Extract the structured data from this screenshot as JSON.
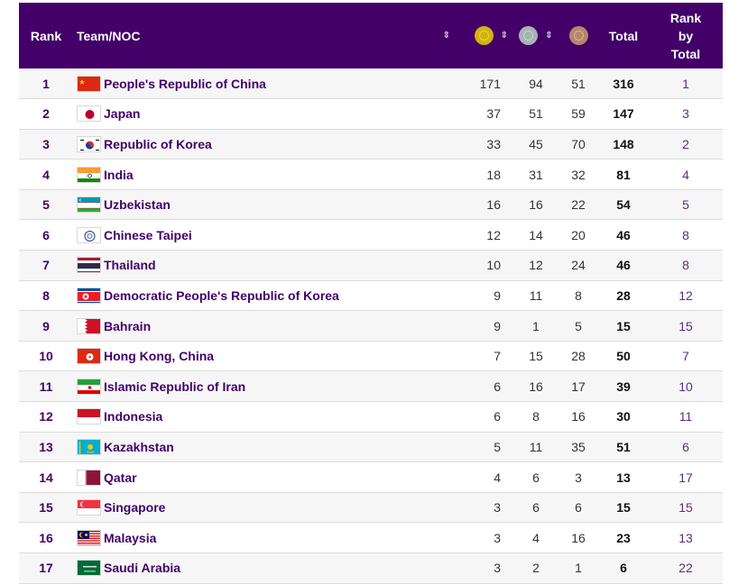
{
  "header": {
    "rank": "Rank",
    "team": "Team/NOC",
    "total": "Total",
    "rank_by_total_line1": "Rank",
    "rank_by_total_line2": "by",
    "rank_by_total_line3": "Total",
    "sort_glyph": "⇕",
    "medal_icons": [
      "gold-medal-icon",
      "silver-medal-icon",
      "bronze-medal-icon"
    ]
  },
  "colors": {
    "header_bg": "#420068",
    "team_text": "#420068",
    "gold": "#d4b20c",
    "silver": "#a9b3b6",
    "bronze": "#b8866b"
  },
  "rows": [
    {
      "rank": "1",
      "team": "People's Republic of China",
      "flag": "china-flag-icon",
      "gold": "171",
      "silver": "94",
      "bronze": "51",
      "total": "316",
      "rank_by_total": "1"
    },
    {
      "rank": "2",
      "team": "Japan",
      "flag": "japan-flag-icon",
      "gold": "37",
      "silver": "51",
      "bronze": "59",
      "total": "147",
      "rank_by_total": "3"
    },
    {
      "rank": "3",
      "team": "Republic of Korea",
      "flag": "korea-flag-icon",
      "gold": "33",
      "silver": "45",
      "bronze": "70",
      "total": "148",
      "rank_by_total": "2"
    },
    {
      "rank": "4",
      "team": "India",
      "flag": "india-flag-icon",
      "gold": "18",
      "silver": "31",
      "bronze": "32",
      "total": "81",
      "rank_by_total": "4"
    },
    {
      "rank": "5",
      "team": "Uzbekistan",
      "flag": "uzbekistan-flag-icon",
      "gold": "16",
      "silver": "16",
      "bronze": "22",
      "total": "54",
      "rank_by_total": "5"
    },
    {
      "rank": "6",
      "team": "Chinese Taipei",
      "flag": "chinese-taipei-flag-icon",
      "gold": "12",
      "silver": "14",
      "bronze": "20",
      "total": "46",
      "rank_by_total": "8"
    },
    {
      "rank": "7",
      "team": "Thailand",
      "flag": "thailand-flag-icon",
      "gold": "10",
      "silver": "12",
      "bronze": "24",
      "total": "46",
      "rank_by_total": "8"
    },
    {
      "rank": "8",
      "team": "Democratic People's Republic of Korea",
      "flag": "dprk-flag-icon",
      "gold": "9",
      "silver": "11",
      "bronze": "8",
      "total": "28",
      "rank_by_total": "12"
    },
    {
      "rank": "9",
      "team": "Bahrain",
      "flag": "bahrain-flag-icon",
      "gold": "9",
      "silver": "1",
      "bronze": "5",
      "total": "15",
      "rank_by_total": "15"
    },
    {
      "rank": "10",
      "team": "Hong Kong, China",
      "flag": "hong-kong-flag-icon",
      "gold": "7",
      "silver": "15",
      "bronze": "28",
      "total": "50",
      "rank_by_total": "7"
    },
    {
      "rank": "11",
      "team": "Islamic Republic of Iran",
      "flag": "iran-flag-icon",
      "gold": "6",
      "silver": "16",
      "bronze": "17",
      "total": "39",
      "rank_by_total": "10"
    },
    {
      "rank": "12",
      "team": "Indonesia",
      "flag": "indonesia-flag-icon",
      "gold": "6",
      "silver": "8",
      "bronze": "16",
      "total": "30",
      "rank_by_total": "11"
    },
    {
      "rank": "13",
      "team": "Kazakhstan",
      "flag": "kazakhstan-flag-icon",
      "gold": "5",
      "silver": "11",
      "bronze": "35",
      "total": "51",
      "rank_by_total": "6"
    },
    {
      "rank": "14",
      "team": "Qatar",
      "flag": "qatar-flag-icon",
      "gold": "4",
      "silver": "6",
      "bronze": "3",
      "total": "13",
      "rank_by_total": "17"
    },
    {
      "rank": "15",
      "team": "Singapore",
      "flag": "singapore-flag-icon",
      "gold": "3",
      "silver": "6",
      "bronze": "6",
      "total": "15",
      "rank_by_total": "15"
    },
    {
      "rank": "16",
      "team": "Malaysia",
      "flag": "malaysia-flag-icon",
      "gold": "3",
      "silver": "4",
      "bronze": "16",
      "total": "23",
      "rank_by_total": "13"
    },
    {
      "rank": "17",
      "team": "Saudi Arabia",
      "flag": "saudi-arabia-flag-icon",
      "gold": "3",
      "silver": "2",
      "bronze": "1",
      "total": "6",
      "rank_by_total": "22"
    }
  ]
}
